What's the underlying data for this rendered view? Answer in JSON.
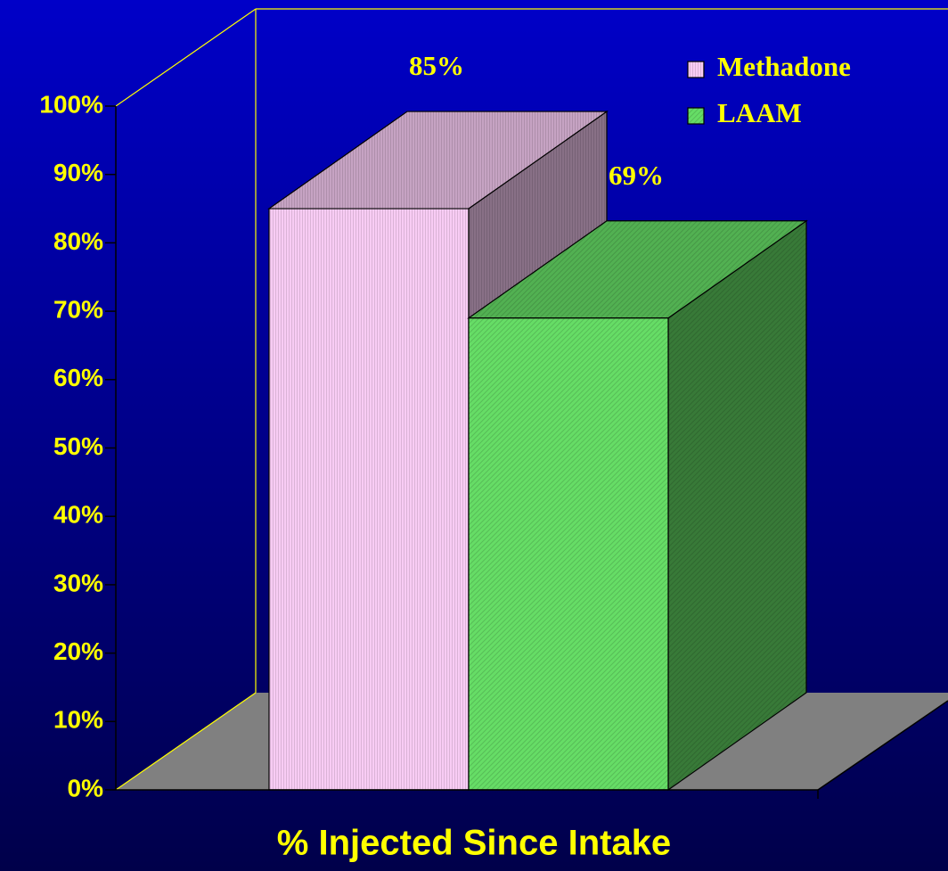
{
  "chart_data": {
    "type": "bar3d",
    "x_label": "% Injected Since Intake",
    "series": [
      {
        "name": "Methadone",
        "color": "#f8ccf4",
        "values": [
          85
        ],
        "value_labels": [
          "85%"
        ]
      },
      {
        "name": "LAAM",
        "color": "#66dd66",
        "values": [
          69
        ],
        "value_labels": [
          "69%"
        ]
      }
    ],
    "ylim": [
      0,
      100
    ],
    "yticks": [
      {
        "value": 0,
        "label": "0%"
      },
      {
        "value": 10,
        "label": "10%"
      },
      {
        "value": 20,
        "label": "20%"
      },
      {
        "value": 30,
        "label": "30%"
      },
      {
        "value": 40,
        "label": "40%"
      },
      {
        "value": 50,
        "label": "50%"
      },
      {
        "value": 60,
        "label": "60%"
      },
      {
        "value": 70,
        "label": "70%"
      },
      {
        "value": 80,
        "label": "80%"
      },
      {
        "value": 90,
        "label": "90%"
      },
      {
        "value": 100,
        "label": "100%"
      }
    ],
    "legend": "top-right"
  }
}
